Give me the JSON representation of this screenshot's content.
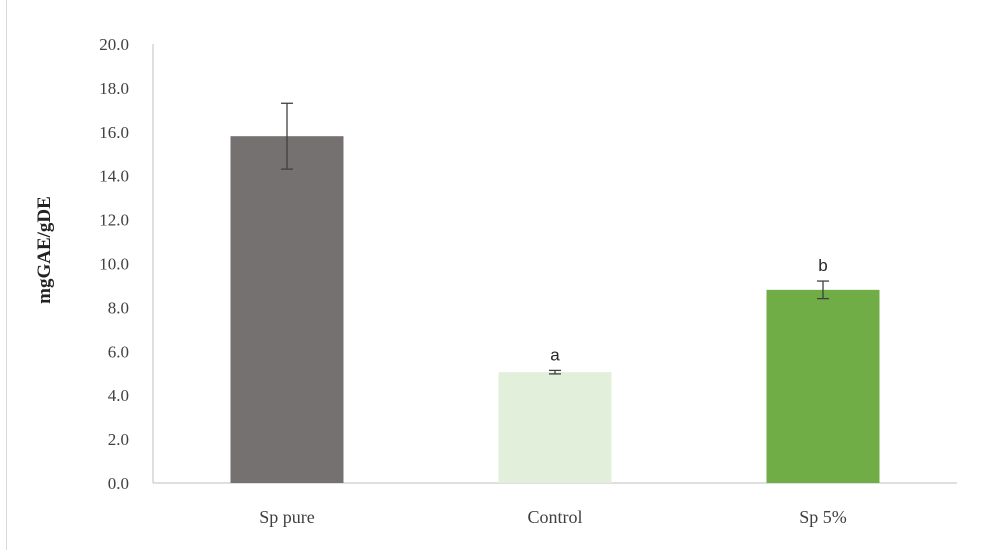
{
  "chart_data": {
    "type": "bar",
    "title": "",
    "xlabel": "",
    "ylabel": "mgGAE/gDE",
    "ylim": [
      0,
      20
    ],
    "y_ticks": [
      "0.0",
      "2.0",
      "4.0",
      "6.0",
      "8.0",
      "10.0",
      "12.0",
      "14.0",
      "16.0",
      "18.0",
      "20.0"
    ],
    "categories": [
      "Sp pure",
      "Control",
      "Sp 5%"
    ],
    "values": [
      15.8,
      5.05,
      8.8
    ],
    "errors": [
      1.5,
      0.08,
      0.4
    ],
    "data_labels": [
      "",
      "a",
      "b"
    ],
    "colors": [
      "#767171",
      "#e2efda",
      "#70ad47"
    ],
    "grid": false,
    "legend": "none"
  }
}
